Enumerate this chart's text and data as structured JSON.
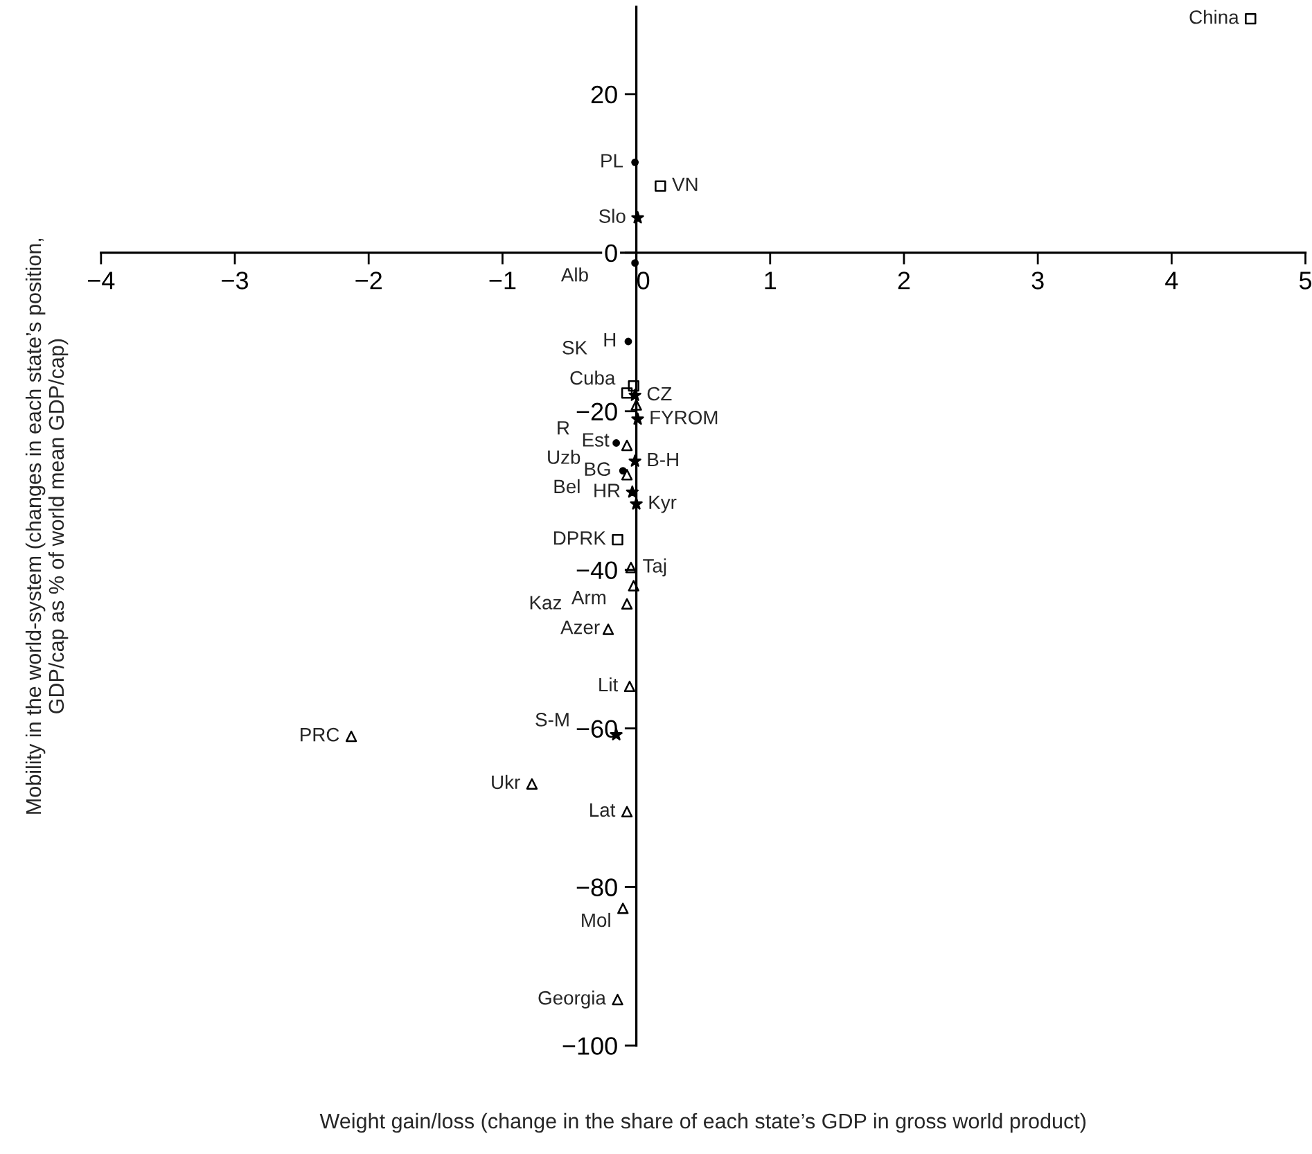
{
  "chart_data": {
    "type": "scatter",
    "xlabel": "Weight gain/loss (change in the share of each state’s GDP in gross world product)",
    "ylabel": "Mobility in the world-system (changes in each state’s position,\nGDP/cap as % of world mean GDP/cap)",
    "xlim": [
      -4,
      5
    ],
    "ylim": [
      -100,
      31
    ],
    "xticks": [
      -4,
      -3,
      -2,
      -1,
      0,
      1,
      2,
      3,
      4,
      5
    ],
    "yticks": [
      {
        "value": 20,
        "label": "20"
      },
      {
        "value": 0,
        "label": "0"
      },
      {
        "value": -20,
        "label": "−20"
      },
      {
        "value": -40,
        "label": "−40"
      },
      {
        "value": -60,
        "label": "−60"
      },
      {
        "value": -80,
        "label": "−80"
      },
      {
        "value": -100,
        "label": "−100"
      }
    ],
    "grid": false,
    "legend": false,
    "series": [
      {
        "marker": "circle",
        "color": "#000000",
        "x": [
          -0.01,
          -0.01,
          -0.06,
          -0.15,
          -0.1
        ],
        "values": [
          11.4,
          -1.3,
          -11.2,
          -24,
          -27.5
        ]
      },
      {
        "marker": "square",
        "color": "#000000",
        "x": [
          4.59,
          0.18,
          -0.02,
          -0.07,
          -0.14
        ],
        "values": [
          29.5,
          8.4,
          -16.8,
          -17.7,
          -36.2
        ]
      },
      {
        "marker": "triangle",
        "color": "#000000",
        "x": [
          0.0,
          -0.07,
          -0.07,
          -0.04,
          -0.02,
          -0.07,
          -0.21,
          -0.05,
          -0.78,
          -2.13,
          -0.07,
          -0.1,
          -0.14
        ],
        "values": [
          -19.2,
          -24.3,
          -28,
          -39.7,
          -42,
          -44.3,
          -47.5,
          -54.7,
          -67,
          -61,
          -70.5,
          -82.7,
          -94.2
        ]
      },
      {
        "marker": "star",
        "color": "#000000",
        "x": [
          0.01,
          -0.01,
          0.01,
          -0.01,
          -0.03,
          0.0,
          -0.15
        ],
        "values": [
          4.4,
          -18,
          -21,
          -26.3,
          -30.2,
          -31.7,
          -60.8
        ]
      }
    ],
    "annotations": [
      {
        "text": "China",
        "x": 4.59,
        "y": 29.5
      },
      {
        "text": "PL",
        "x": -0.01,
        "y": 11.4
      },
      {
        "text": "VN",
        "x": 0.18,
        "y": 8.4
      },
      {
        "text": "Slo",
        "x": 0.01,
        "y": 4.4
      },
      {
        "text": "Alb",
        "x": -0.01,
        "y": -1.3
      },
      {
        "text": "H",
        "x": -0.06,
        "y": -11.2
      },
      {
        "text": "Cuba",
        "x": -0.07,
        "y": -17.7
      },
      {
        "text": "CZ",
        "x": -0.01,
        "y": -18
      },
      {
        "text": "SK",
        "x": -0.02,
        "y": -16.8
      },
      {
        "text": "Est",
        "x": 0.0,
        "y": -19.2
      },
      {
        "text": "FYROM",
        "x": 0.01,
        "y": -21
      },
      {
        "text": "R",
        "x": -0.15,
        "y": -24
      },
      {
        "text": "Uzb",
        "x": -0.07,
        "y": -24.3
      },
      {
        "text": "B-H",
        "x": -0.01,
        "y": -26.3
      },
      {
        "text": "BG",
        "x": -0.1,
        "y": -27.5
      },
      {
        "text": "Bel",
        "x": -0.07,
        "y": -28
      },
      {
        "text": "HR",
        "x": -0.03,
        "y": -30.2
      },
      {
        "text": "Kyr",
        "x": 0.0,
        "y": -31.7
      },
      {
        "text": "DPRK",
        "x": -0.14,
        "y": -36.2
      },
      {
        "text": "Taj",
        "x": -0.04,
        "y": -39.7
      },
      {
        "text": "Arm",
        "x": -0.02,
        "y": -42
      },
      {
        "text": "Azer",
        "x": -0.07,
        "y": -44.3
      },
      {
        "text": "Kaz",
        "x": -0.21,
        "y": -47.5
      },
      {
        "text": "Lit",
        "x": -0.05,
        "y": -54.7
      },
      {
        "text": "PRC",
        "x": -2.13,
        "y": -61
      },
      {
        "text": "S-M",
        "x": -0.15,
        "y": -60.8
      },
      {
        "text": "Ukr",
        "x": -0.78,
        "y": -67
      },
      {
        "text": "Lat",
        "x": -0.07,
        "y": -70.5
      },
      {
        "text": "Mol",
        "x": -0.1,
        "y": -82.7
      },
      {
        "text": "Georgia",
        "x": -0.14,
        "y": -94.2
      }
    ]
  }
}
